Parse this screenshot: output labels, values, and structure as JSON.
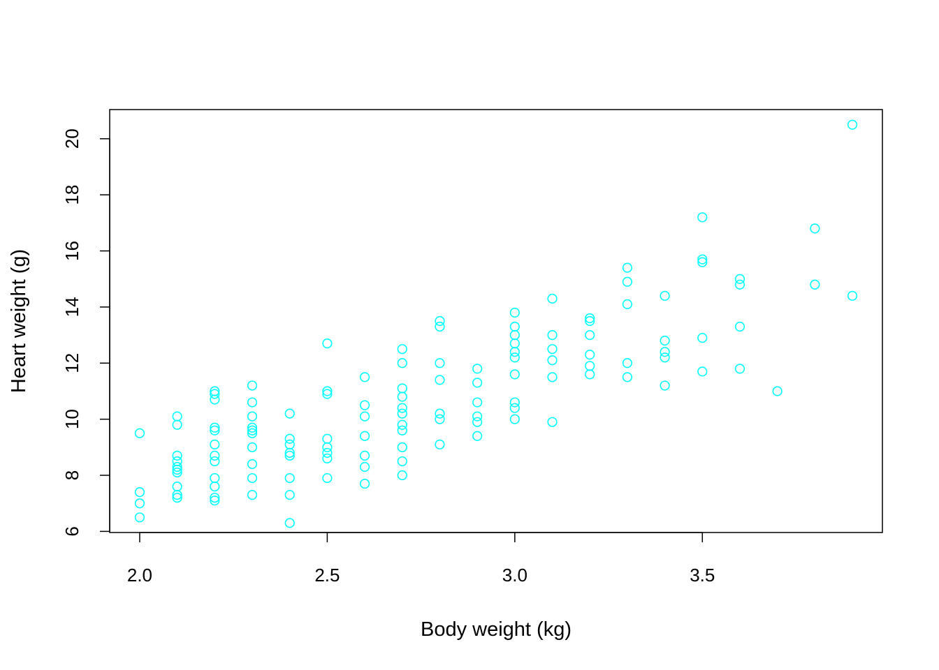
{
  "chart_data": {
    "type": "scatter",
    "title": "",
    "xlabel": "Body weight (kg)",
    "ylabel": "Heart weight (g)",
    "xlim": [
      1.92,
      3.98
    ],
    "ylim": [
      5.96,
      21.04
    ],
    "xticks": [
      2.0,
      2.5,
      3.0,
      3.5
    ],
    "xtick_labels": [
      "2.0",
      "2.5",
      "3.0",
      "3.5"
    ],
    "yticks": [
      6,
      8,
      10,
      12,
      14,
      16,
      18,
      20
    ],
    "ytick_labels": [
      "6",
      "8",
      "10",
      "12",
      "14",
      "16",
      "18",
      "20"
    ],
    "grid": false,
    "legend": false,
    "marker": "open-circle",
    "color": "#00FFFF",
    "points": [
      [
        2.0,
        9.5
      ],
      [
        2.0,
        7.4
      ],
      [
        2.0,
        7.0
      ],
      [
        2.0,
        6.5
      ],
      [
        2.1,
        10.1
      ],
      [
        2.1,
        9.8
      ],
      [
        2.1,
        8.7
      ],
      [
        2.1,
        8.5
      ],
      [
        2.1,
        8.3
      ],
      [
        2.1,
        8.2
      ],
      [
        2.1,
        8.1
      ],
      [
        2.1,
        7.6
      ],
      [
        2.1,
        7.3
      ],
      [
        2.1,
        7.2
      ],
      [
        2.2,
        11.0
      ],
      [
        2.2,
        10.9
      ],
      [
        2.2,
        10.7
      ],
      [
        2.2,
        9.7
      ],
      [
        2.2,
        9.6
      ],
      [
        2.2,
        9.1
      ],
      [
        2.2,
        8.7
      ],
      [
        2.2,
        8.5
      ],
      [
        2.2,
        7.9
      ],
      [
        2.2,
        7.6
      ],
      [
        2.2,
        7.2
      ],
      [
        2.2,
        7.1
      ],
      [
        2.3,
        11.2
      ],
      [
        2.3,
        10.6
      ],
      [
        2.3,
        10.1
      ],
      [
        2.3,
        9.7
      ],
      [
        2.3,
        9.6
      ],
      [
        2.3,
        9.5
      ],
      [
        2.3,
        9.0
      ],
      [
        2.3,
        8.4
      ],
      [
        2.3,
        7.9
      ],
      [
        2.3,
        7.3
      ],
      [
        2.4,
        10.2
      ],
      [
        2.4,
        9.3
      ],
      [
        2.4,
        9.1
      ],
      [
        2.4,
        8.8
      ],
      [
        2.4,
        8.7
      ],
      [
        2.4,
        7.9
      ],
      [
        2.4,
        7.3
      ],
      [
        2.4,
        6.3
      ],
      [
        2.5,
        12.7
      ],
      [
        2.5,
        11.0
      ],
      [
        2.5,
        10.9
      ],
      [
        2.5,
        9.3
      ],
      [
        2.5,
        9.0
      ],
      [
        2.5,
        8.8
      ],
      [
        2.5,
        8.6
      ],
      [
        2.5,
        7.9
      ],
      [
        2.6,
        11.5
      ],
      [
        2.6,
        10.5
      ],
      [
        2.6,
        10.1
      ],
      [
        2.6,
        9.4
      ],
      [
        2.6,
        8.7
      ],
      [
        2.6,
        8.3
      ],
      [
        2.6,
        7.7
      ],
      [
        2.7,
        12.5
      ],
      [
        2.7,
        12.0
      ],
      [
        2.7,
        11.1
      ],
      [
        2.7,
        10.8
      ],
      [
        2.7,
        10.4
      ],
      [
        2.7,
        10.2
      ],
      [
        2.7,
        9.8
      ],
      [
        2.7,
        9.6
      ],
      [
        2.7,
        9.0
      ],
      [
        2.7,
        8.5
      ],
      [
        2.7,
        8.0
      ],
      [
        2.8,
        13.5
      ],
      [
        2.8,
        13.3
      ],
      [
        2.8,
        12.0
      ],
      [
        2.8,
        11.4
      ],
      [
        2.8,
        10.2
      ],
      [
        2.8,
        10.0
      ],
      [
        2.8,
        9.1
      ],
      [
        2.9,
        11.8
      ],
      [
        2.9,
        11.3
      ],
      [
        2.9,
        10.6
      ],
      [
        2.9,
        10.1
      ],
      [
        2.9,
        9.9
      ],
      [
        2.9,
        9.4
      ],
      [
        3.0,
        13.8
      ],
      [
        3.0,
        13.3
      ],
      [
        3.0,
        13.0
      ],
      [
        3.0,
        12.7
      ],
      [
        3.0,
        12.4
      ],
      [
        3.0,
        12.2
      ],
      [
        3.0,
        11.6
      ],
      [
        3.0,
        10.6
      ],
      [
        3.0,
        10.4
      ],
      [
        3.0,
        10.0
      ],
      [
        3.1,
        14.3
      ],
      [
        3.1,
        13.0
      ],
      [
        3.1,
        12.5
      ],
      [
        3.1,
        12.1
      ],
      [
        3.1,
        11.5
      ],
      [
        3.1,
        9.9
      ],
      [
        3.2,
        13.6
      ],
      [
        3.2,
        13.5
      ],
      [
        3.2,
        13.0
      ],
      [
        3.2,
        12.3
      ],
      [
        3.2,
        11.9
      ],
      [
        3.2,
        11.6
      ],
      [
        3.3,
        15.4
      ],
      [
        3.3,
        14.9
      ],
      [
        3.3,
        14.1
      ],
      [
        3.3,
        12.0
      ],
      [
        3.3,
        11.5
      ],
      [
        3.4,
        14.4
      ],
      [
        3.4,
        12.8
      ],
      [
        3.4,
        12.4
      ],
      [
        3.4,
        12.2
      ],
      [
        3.4,
        11.2
      ],
      [
        3.5,
        17.2
      ],
      [
        3.5,
        15.7
      ],
      [
        3.5,
        15.6
      ],
      [
        3.5,
        12.9
      ],
      [
        3.5,
        11.7
      ],
      [
        3.6,
        15.0
      ],
      [
        3.6,
        14.8
      ],
      [
        3.6,
        13.3
      ],
      [
        3.6,
        11.8
      ],
      [
        3.7,
        11.0
      ],
      [
        3.8,
        16.8
      ],
      [
        3.8,
        14.8
      ],
      [
        3.9,
        20.5
      ],
      [
        3.9,
        14.4
      ]
    ]
  }
}
